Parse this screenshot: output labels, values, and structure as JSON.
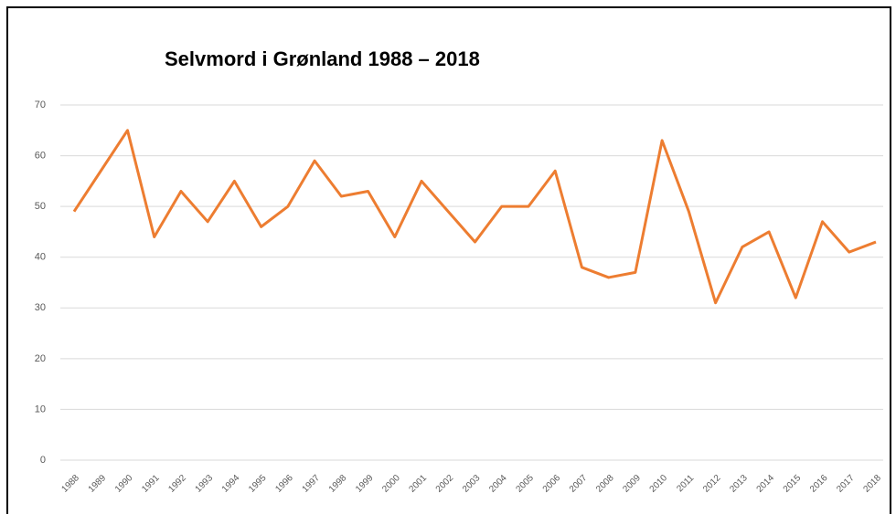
{
  "chart_data": {
    "type": "line",
    "title": "Selvmord i Grønland 1988 – 2018",
    "categories": [
      "1988",
      "1989",
      "1990",
      "1991",
      "1992",
      "1993",
      "1994",
      "1995",
      "1996",
      "1997",
      "1998",
      "1999",
      "2000",
      "2001",
      "2002",
      "2003",
      "2004",
      "2005",
      "2006",
      "2007",
      "2008",
      "2009",
      "2010",
      "2011",
      "2012",
      "2013",
      "2014",
      "2015",
      "2016",
      "2017",
      "2018"
    ],
    "values": [
      49,
      57,
      65,
      44,
      53,
      47,
      55,
      46,
      50,
      59,
      52,
      53,
      44,
      55,
      49,
      43,
      50,
      50,
      57,
      38,
      36,
      37,
      63,
      49,
      31,
      42,
      45,
      32,
      47,
      41,
      43
    ],
    "color": "#ed7d31",
    "ylim": [
      0,
      70
    ],
    "yticks": [
      0,
      10,
      20,
      30,
      40,
      50,
      60,
      70
    ],
    "grid": true
  }
}
